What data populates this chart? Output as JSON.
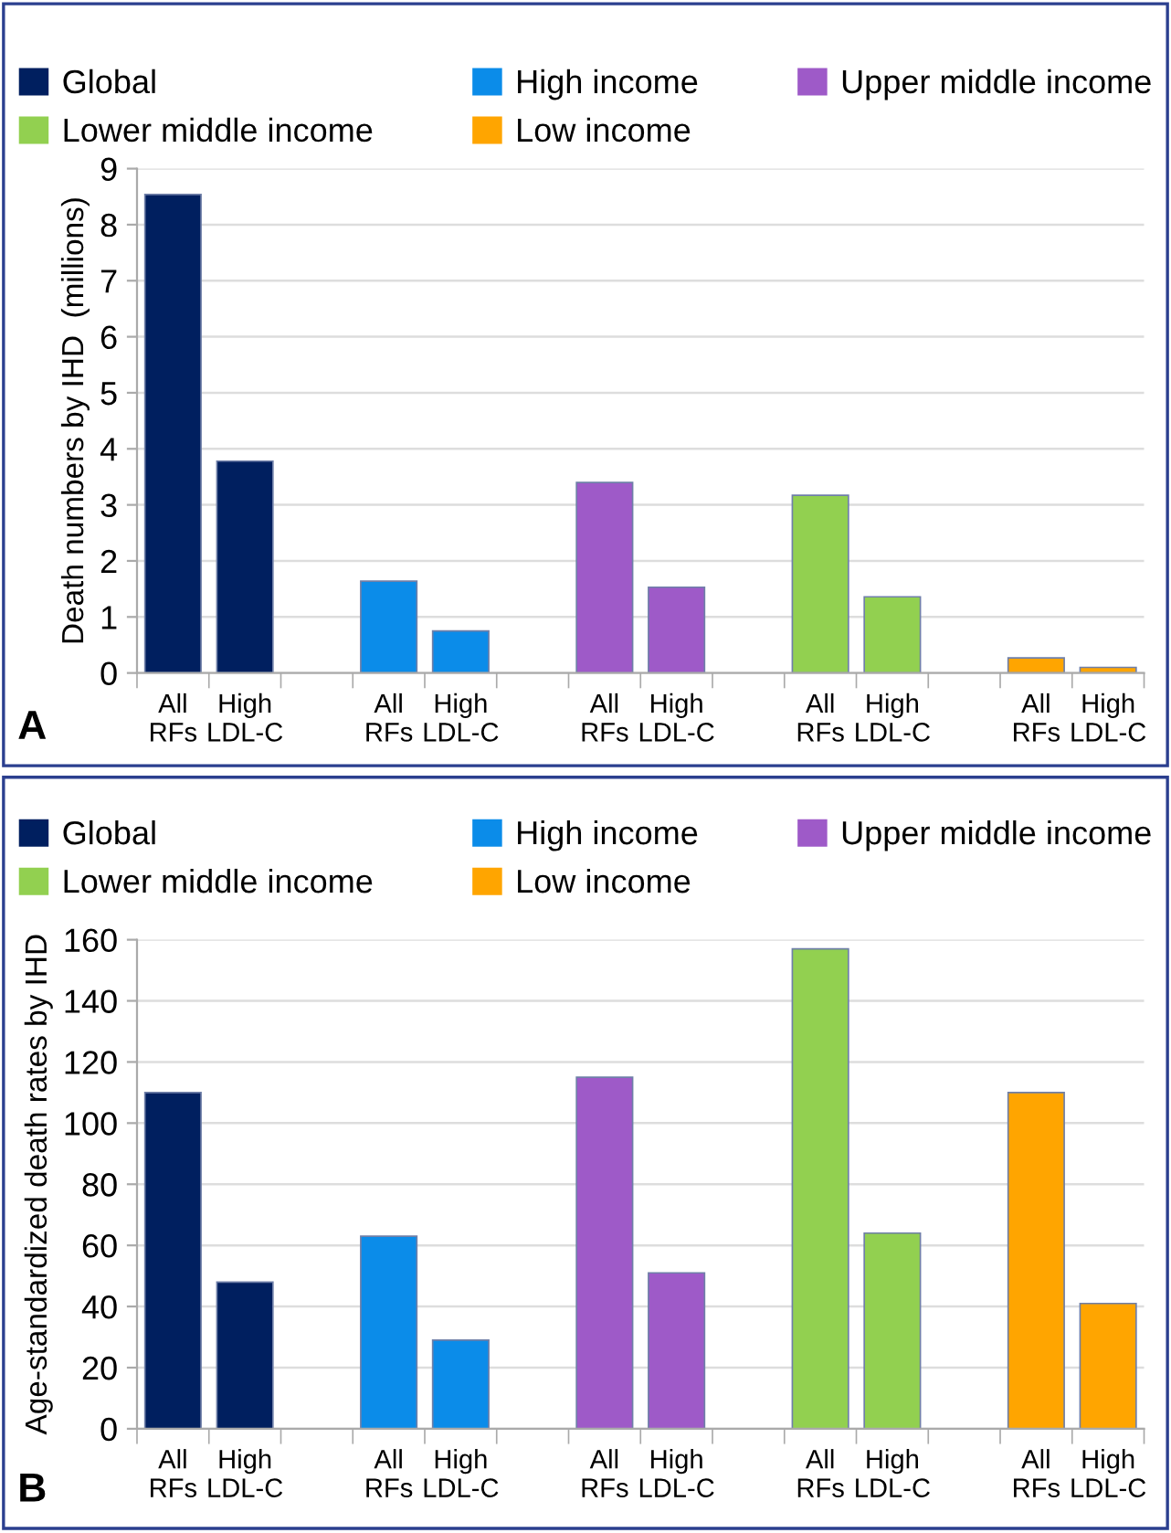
{
  "chart_data": [
    {
      "type": "bar",
      "ylabel": "Death numbers by IHD  (millions)",
      "annotations": [
        "A"
      ],
      "categories": [
        "All\nRFs",
        "High\nLDL-C",
        null,
        "All\nRFs",
        "High\nLDL-C",
        null,
        "All\nRFs",
        "High\nLDL-C",
        null,
        "All\nRFs",
        "High\nLDL-C",
        null,
        "All\nRFs",
        "High\nLDL-C"
      ],
      "series": [
        {
          "name": "Global",
          "color": "#001f5f",
          "values": [
            8.54,
            3.78,
            null,
            null,
            null,
            null,
            null,
            null,
            null,
            null,
            null,
            null,
            null,
            null
          ]
        },
        {
          "name": "High income",
          "color": "#0b8ce9",
          "values": [
            null,
            null,
            null,
            1.64,
            0.75,
            null,
            null,
            null,
            null,
            null,
            null,
            null,
            null,
            null
          ]
        },
        {
          "name": "Upper middle income",
          "color": "#9e5ac8",
          "values": [
            null,
            null,
            null,
            null,
            null,
            null,
            3.4,
            1.53,
            null,
            null,
            null,
            null,
            null,
            null
          ]
        },
        {
          "name": "Lower middle income",
          "color": "#92d050",
          "values": [
            null,
            null,
            null,
            null,
            null,
            null,
            null,
            null,
            null,
            3.17,
            1.36,
            null,
            null,
            null
          ]
        },
        {
          "name": "Low income",
          "color": "#ffa500",
          "values": [
            null,
            null,
            null,
            null,
            null,
            null,
            null,
            null,
            null,
            null,
            null,
            null,
            0.27,
            0.1
          ]
        }
      ],
      "ylim": [
        0,
        9
      ],
      "yticks": [
        0,
        1,
        2,
        3,
        4,
        5,
        6,
        7,
        8,
        9
      ],
      "grid": "y",
      "legend": "top"
    },
    {
      "type": "bar",
      "ylabel": "Age-standardized death rates by IHD",
      "annotations": [
        "B"
      ],
      "categories": [
        "All\nRFs",
        "High\nLDL-C",
        null,
        "All\nRFs",
        "High\nLDL-C",
        null,
        "All\nRFs",
        "High\nLDL-C",
        null,
        "All\nRFs",
        "High\nLDL-C",
        null,
        "All\nRFs",
        "High\nLDL-C"
      ],
      "series": [
        {
          "name": "Global",
          "color": "#001f5f",
          "values": [
            110,
            48,
            null,
            null,
            null,
            null,
            null,
            null,
            null,
            null,
            null,
            null,
            null,
            null
          ]
        },
        {
          "name": "High income",
          "color": "#0b8ce9",
          "values": [
            null,
            null,
            null,
            63,
            29,
            null,
            null,
            null,
            null,
            null,
            null,
            null,
            null,
            null
          ]
        },
        {
          "name": "Upper middle income",
          "color": "#9e5ac8",
          "values": [
            null,
            null,
            null,
            null,
            null,
            null,
            115,
            51,
            null,
            null,
            null,
            null,
            null,
            null
          ]
        },
        {
          "name": "Lower middle income",
          "color": "#92d050",
          "values": [
            null,
            null,
            null,
            null,
            null,
            null,
            null,
            null,
            null,
            157,
            64,
            null,
            null,
            null
          ]
        },
        {
          "name": "Low income",
          "color": "#ffa500",
          "values": [
            null,
            null,
            null,
            null,
            null,
            null,
            null,
            null,
            null,
            null,
            null,
            null,
            110,
            41
          ]
        }
      ],
      "ylim": [
        0,
        160
      ],
      "yticks": [
        0,
        20,
        40,
        60,
        80,
        100,
        120,
        140,
        160
      ],
      "grid": "y",
      "legend": "top"
    }
  ]
}
